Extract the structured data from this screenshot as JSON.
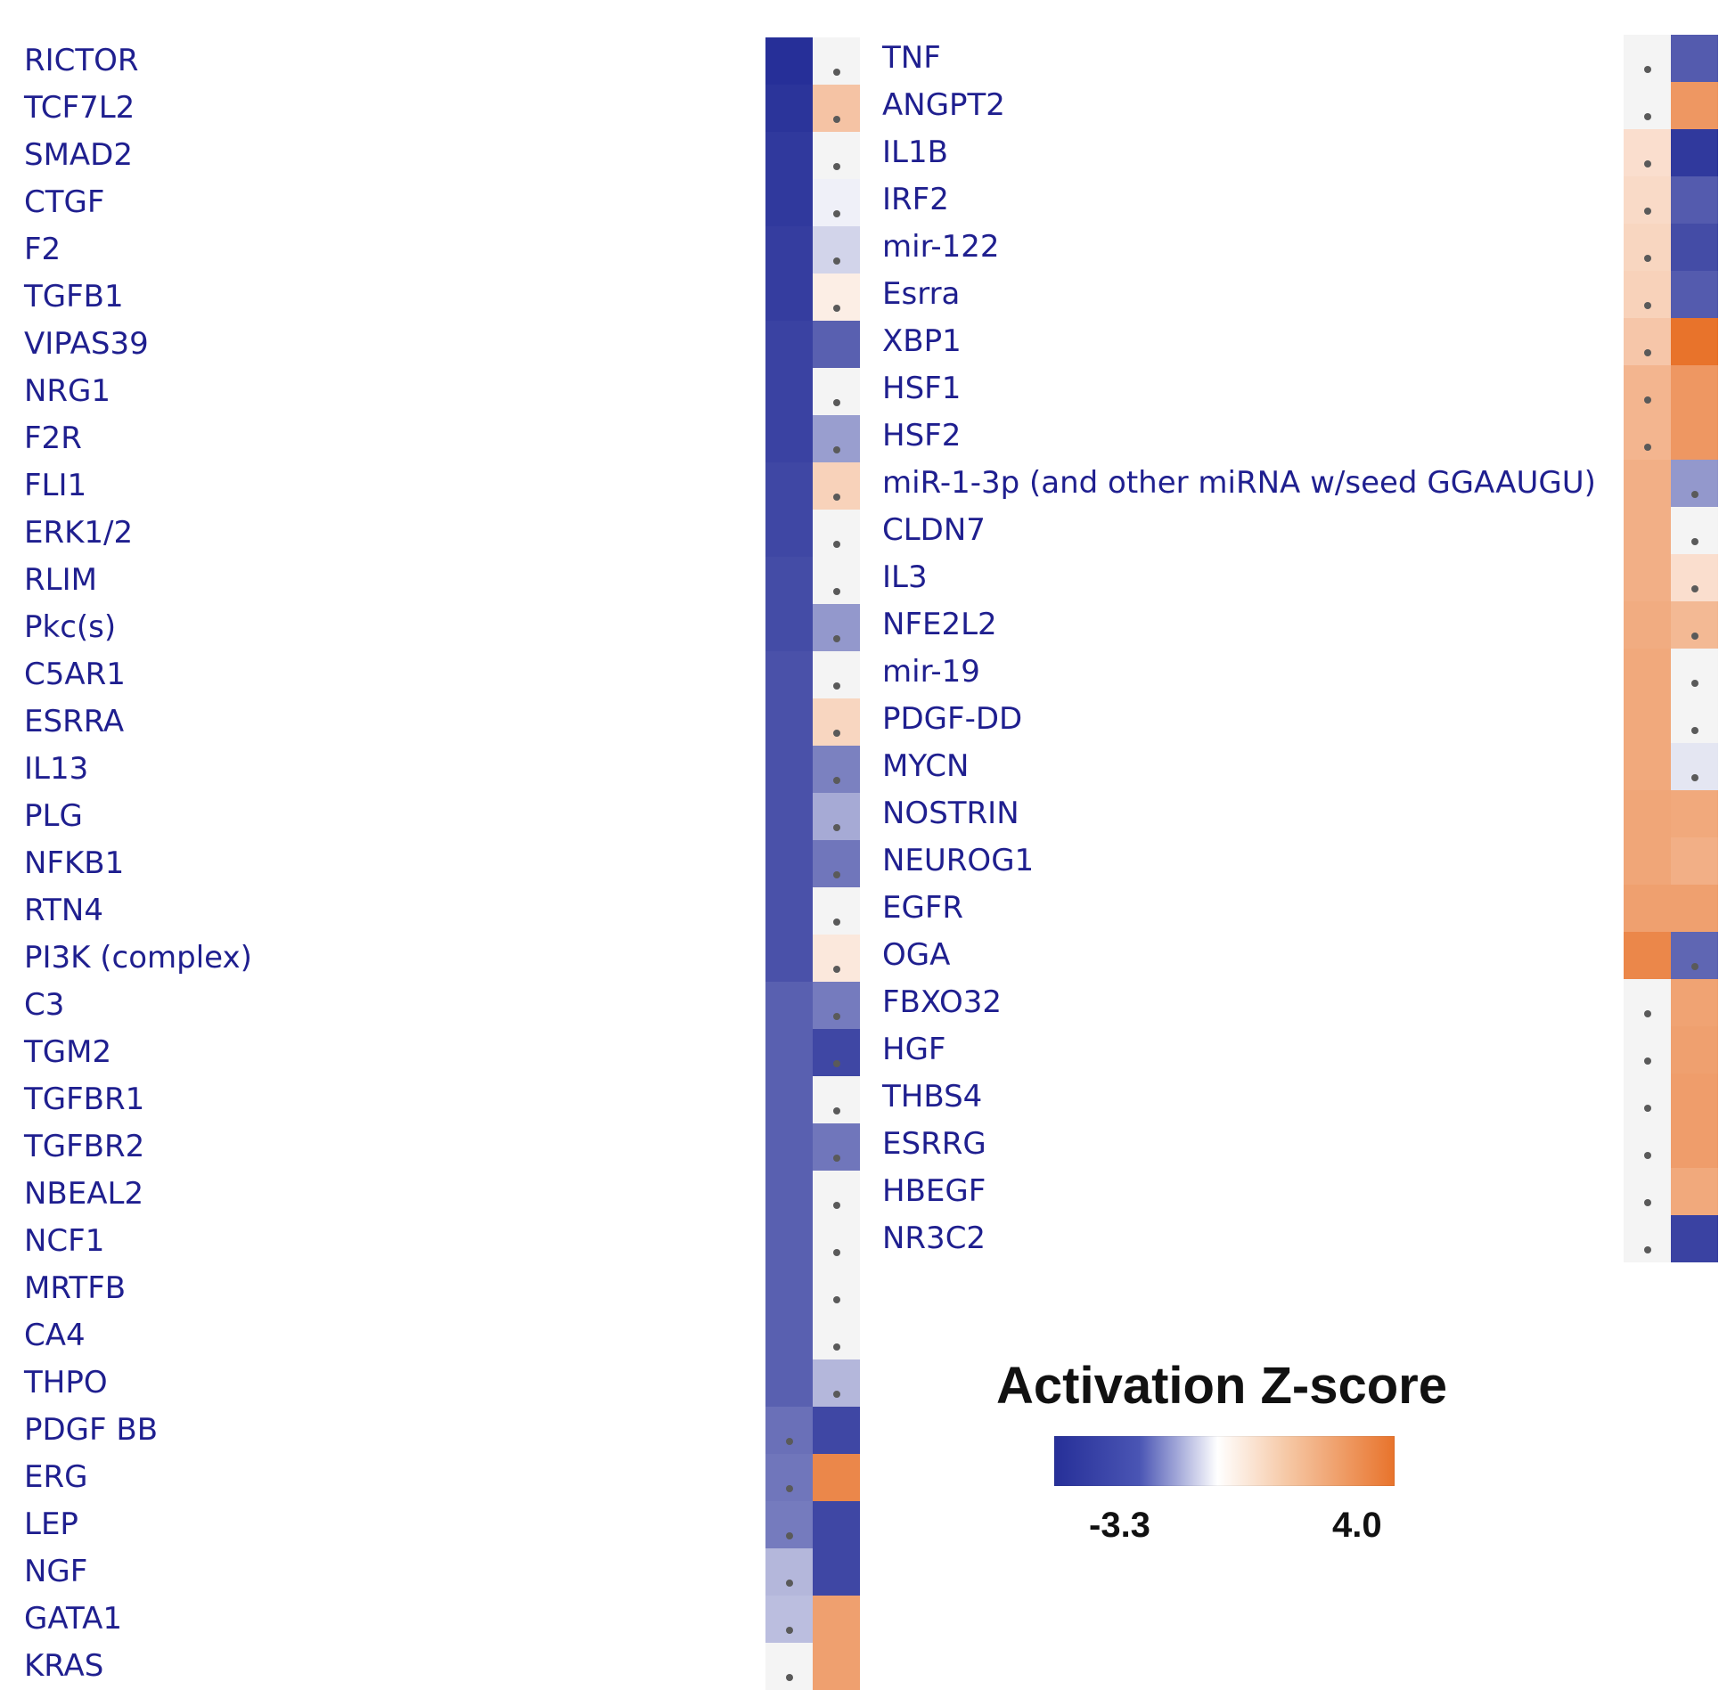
{
  "chart_data": {
    "type": "heatmap",
    "title": "Activation Z-score",
    "colorbar": {
      "min": -3.3,
      "max": 4.0,
      "min_label": "-3.3",
      "max_label": "4.0"
    },
    "colors": {
      "negative": "#262f98",
      "neutral": "#ffffff",
      "positive": "#e8732b",
      "label_text": "#1f1f8f",
      "empty_cell": "#f4f4f4",
      "dot": "#5a5a5a"
    },
    "panels": [
      {
        "name": "left",
        "rows": [
          {
            "label": "RICTOR",
            "values": [
              -3.3,
              null
            ]
          },
          {
            "label": "TCF7L2",
            "values": [
              -3.2,
              1.2
            ]
          },
          {
            "label": "SMAD2",
            "values": [
              -3.1,
              null
            ]
          },
          {
            "label": "CTGF",
            "values": [
              -3.1,
              -0.1
            ]
          },
          {
            "label": "F2",
            "values": [
              -3.0,
              -0.4
            ]
          },
          {
            "label": "TGFB1",
            "values": [
              -3.0,
              0.2
            ]
          },
          {
            "label": "VIPAS39",
            "values": [
              -2.9,
              -2.3
            ]
          },
          {
            "label": "NRG1",
            "values": [
              -2.9,
              null
            ]
          },
          {
            "label": "F2R",
            "values": [
              -2.9,
              -1.2
            ]
          },
          {
            "label": "FLI1",
            "values": [
              -2.8,
              0.8
            ]
          },
          {
            "label": "ERK1/2",
            "values": [
              -2.8,
              null
            ]
          },
          {
            "label": "RLIM",
            "values": [
              -2.7,
              null
            ]
          },
          {
            "label": "Pkc(s)",
            "values": [
              -2.7,
              -1.3
            ]
          },
          {
            "label": "C5AR1",
            "values": [
              -2.6,
              null
            ]
          },
          {
            "label": "ESRRA",
            "values": [
              -2.6,
              0.7
            ]
          },
          {
            "label": "IL13",
            "values": [
              -2.6,
              -1.7
            ]
          },
          {
            "label": "PLG",
            "values": [
              -2.6,
              -1.0
            ]
          },
          {
            "label": "NFKB1",
            "values": [
              -2.6,
              -1.9
            ]
          },
          {
            "label": "RTN4",
            "values": [
              -2.6,
              null
            ]
          },
          {
            "label": "PI3K (complex)",
            "values": [
              -2.6,
              0.3
            ]
          },
          {
            "label": "C3",
            "values": [
              -2.3,
              -1.8
            ]
          },
          {
            "label": "TGM2",
            "values": [
              -2.3,
              -2.8
            ]
          },
          {
            "label": "TGFBR1",
            "values": [
              -2.3,
              null
            ]
          },
          {
            "label": "TGFBR2",
            "values": [
              -2.3,
              -1.9
            ]
          },
          {
            "label": "NBEAL2",
            "values": [
              -2.3,
              null
            ]
          },
          {
            "label": "NCF1",
            "values": [
              -2.3,
              null
            ]
          },
          {
            "label": "MRTFB",
            "values": [
              -2.3,
              null
            ]
          },
          {
            "label": "CA4",
            "values": [
              -2.3,
              null
            ]
          },
          {
            "label": "THPO",
            "values": [
              -2.3,
              -0.8
            ]
          },
          {
            "label": "PDGF BB",
            "values": [
              -2.0,
              -2.8
            ]
          },
          {
            "label": "ERG",
            "values": [
              -1.9,
              3.2
            ]
          },
          {
            "label": "LEP",
            "values": [
              -1.8,
              -2.8
            ]
          },
          {
            "label": "NGF",
            "values": [
              -0.8,
              -2.8
            ]
          },
          {
            "label": "GATA1",
            "values": [
              -0.7,
              2.3
            ]
          },
          {
            "label": "KRAS",
            "values": [
              null,
              2.3
            ]
          }
        ]
      },
      {
        "name": "right",
        "rows": [
          {
            "label": "TNF",
            "values": [
              null,
              -2.4
            ]
          },
          {
            "label": "ANGPT2",
            "values": [
              null,
              2.6
            ]
          },
          {
            "label": "IL1B",
            "values": [
              0.5,
              -3.1
            ]
          },
          {
            "label": "IRF2",
            "values": [
              0.6,
              -2.4
            ]
          },
          {
            "label": "mir-122",
            "values": [
              0.7,
              -2.7
            ]
          },
          {
            "label": "Esrra",
            "values": [
              0.8,
              -2.4
            ]
          },
          {
            "label": "XBP1",
            "values": [
              1.1,
              4.0
            ]
          },
          {
            "label": "HSF1",
            "values": [
              1.6,
              2.6
            ]
          },
          {
            "label": "HSF2",
            "values": [
              1.6,
              2.6
            ]
          },
          {
            "label": "miR-1-3p (and other miRNA w/seed GGAAUGU)",
            "values": [
              1.8,
              -1.3
            ]
          },
          {
            "label": "CLDN7",
            "values": [
              1.8,
              null
            ]
          },
          {
            "label": "IL3",
            "values": [
              1.8,
              0.5
            ]
          },
          {
            "label": "NFE2L2",
            "values": [
              1.9,
              1.5
            ]
          },
          {
            "label": "mir-19",
            "values": [
              2.0,
              null
            ]
          },
          {
            "label": "PDGF-DD",
            "values": [
              2.0,
              null
            ]
          },
          {
            "label": "MYCN",
            "values": [
              2.0,
              -0.2
            ]
          },
          {
            "label": "NOSTRIN",
            "values": [
              2.1,
              2.0
            ]
          },
          {
            "label": "NEUROG1",
            "values": [
              2.1,
              1.8
            ]
          },
          {
            "label": "EGFR",
            "values": [
              2.3,
              2.3
            ]
          },
          {
            "label": "OGA",
            "values": [
              3.2,
              -2.2
            ]
          },
          {
            "label": "FBXO32",
            "values": [
              null,
              2.2
            ]
          },
          {
            "label": "HGF",
            "values": [
              null,
              2.3
            ]
          },
          {
            "label": "THBS4",
            "values": [
              null,
              2.4
            ]
          },
          {
            "label": "ESRRG",
            "values": [
              null,
              2.4
            ]
          },
          {
            "label": "HBEGF",
            "values": [
              null,
              2.0
            ]
          },
          {
            "label": "NR3C2",
            "values": [
              null,
              -2.9
            ]
          }
        ]
      }
    ],
    "significant_dots": {
      "left": [
        [
          false,
          true
        ],
        [
          false,
          true
        ],
        [
          false,
          true
        ],
        [
          false,
          true
        ],
        [
          false,
          true
        ],
        [
          false,
          true
        ],
        [
          false,
          false
        ],
        [
          false,
          true
        ],
        [
          false,
          true
        ],
        [
          false,
          true
        ],
        [
          false,
          true
        ],
        [
          false,
          true
        ],
        [
          false,
          true
        ],
        [
          false,
          true
        ],
        [
          false,
          true
        ],
        [
          false,
          true
        ],
        [
          false,
          true
        ],
        [
          false,
          true
        ],
        [
          false,
          true
        ],
        [
          false,
          true
        ],
        [
          false,
          true
        ],
        [
          false,
          true
        ],
        [
          false,
          true
        ],
        [
          false,
          true
        ],
        [
          false,
          true
        ],
        [
          false,
          true
        ],
        [
          false,
          true
        ],
        [
          false,
          true
        ],
        [
          false,
          true
        ],
        [
          true,
          false
        ],
        [
          true,
          false
        ],
        [
          true,
          false
        ],
        [
          true,
          false
        ],
        [
          true,
          false
        ],
        [
          true,
          false
        ]
      ],
      "right": [
        [
          true,
          false
        ],
        [
          true,
          false
        ],
        [
          true,
          false
        ],
        [
          true,
          false
        ],
        [
          true,
          false
        ],
        [
          true,
          false
        ],
        [
          true,
          false
        ],
        [
          true,
          false
        ],
        [
          true,
          false
        ],
        [
          false,
          true
        ],
        [
          false,
          true
        ],
        [
          false,
          true
        ],
        [
          false,
          true
        ],
        [
          false,
          true
        ],
        [
          false,
          true
        ],
        [
          false,
          true
        ],
        [
          false,
          false
        ],
        [
          false,
          false
        ],
        [
          false,
          false
        ],
        [
          false,
          true
        ],
        [
          true,
          false
        ],
        [
          true,
          false
        ],
        [
          true,
          false
        ],
        [
          true,
          false
        ],
        [
          true,
          false
        ],
        [
          true,
          false
        ]
      ]
    }
  }
}
